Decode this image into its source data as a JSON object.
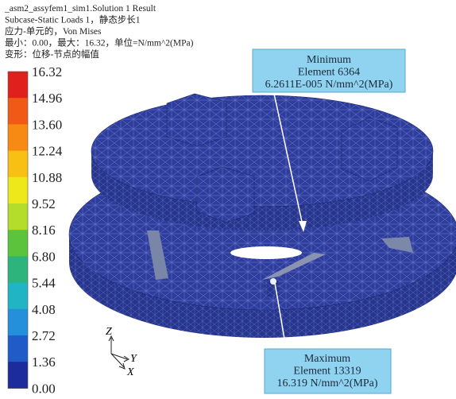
{
  "header": {
    "lines": [
      "_asm2_assyfem1_sim1.Solution 1 Result",
      "Subcase-Static Loads 1，静态步长1",
      "应力-单元的，Von Mises",
      "最小：0.00，最大：16.32，单位=N/mm^2(MPa)",
      "变形：位移-节点的幅值"
    ]
  },
  "legend": {
    "labels": [
      "16.32",
      "14.96",
      "13.60",
      "12.24",
      "10.88",
      "9.52",
      "8.16",
      "6.80",
      "5.44",
      "4.08",
      "2.72",
      "1.36",
      "0.00"
    ]
  },
  "callouts": {
    "minimum": [
      "Minimum",
      "Element 6364",
      "6.2611E-005 N/mm^2(MPa)"
    ],
    "maximum": [
      "Maximum",
      "Element 13319",
      "16.319 N/mm^2(MPa)"
    ]
  },
  "axes": {
    "z": "Z",
    "y": "Y",
    "x": "X"
  }
}
